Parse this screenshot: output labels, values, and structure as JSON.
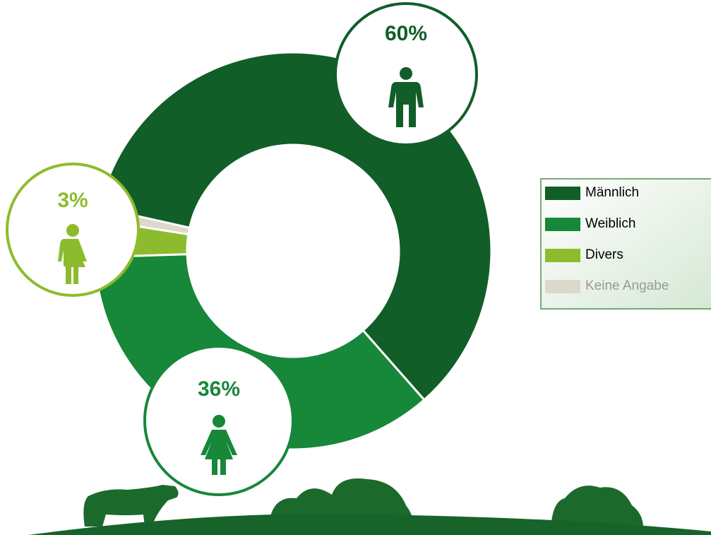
{
  "chart_data": {
    "type": "donut",
    "categories": [
      "Männlich",
      "Weiblich",
      "Divers",
      "Keine Angabe"
    ],
    "values": [
      60,
      36,
      3,
      1
    ],
    "value_labels": [
      "60%",
      "36%",
      "3%",
      null
    ],
    "colors": [
      "#115e28",
      "#17873a",
      "#8cbc2d",
      "#ddd8cc"
    ],
    "legend": "right"
  }
}
